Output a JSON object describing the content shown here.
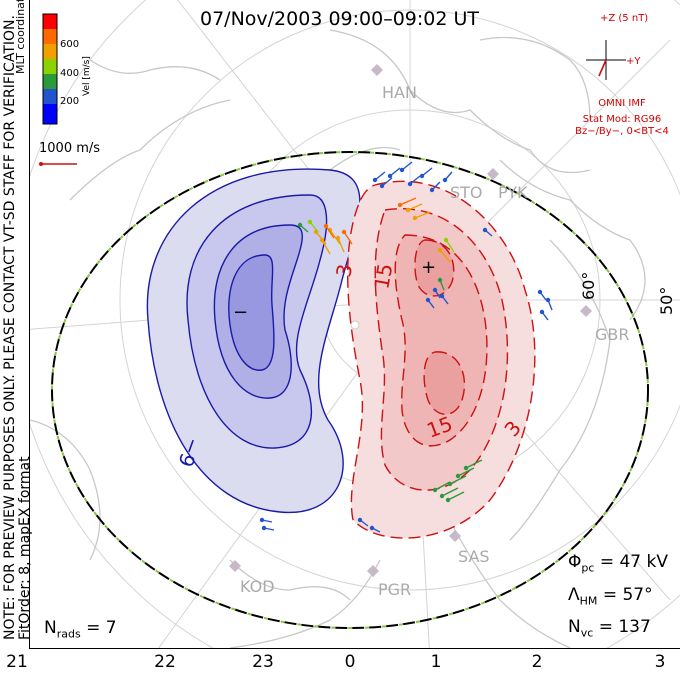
{
  "title": "07/Nov/2003 09:00–09:02 UT",
  "colorbar": {
    "label": "Vel [m/s]",
    "ticks": [
      "600",
      "400",
      "200"
    ],
    "colors": [
      "#ff0000",
      "#ff6a00",
      "#f0a000",
      "#8cd200",
      "#2a9a3a",
      "#2255cc",
      "#0000ff"
    ]
  },
  "coordinates_label": "MLT coordinates",
  "scale_label": "1000 m/s",
  "disclaimer": "NOTE: FOR PREVIEW PURPOSES ONLY. PLEASE CONTACT VT-SD STAFF FOR VERIFICATION.",
  "fit_info": "FitOrder: 8, mapEX format",
  "imf": {
    "bz_label": "+Z (5 nT)",
    "by_label": "+Y",
    "source": "OMNI IMF",
    "model": "Stat Mod: RG96",
    "condition": "Bz−/By−, 0<BT<4"
  },
  "stations": [
    "HAN",
    "STO",
    "PYK",
    "GBR",
    "KOD",
    "PGR",
    "SAS"
  ],
  "lat_labels": [
    "60°",
    "50°"
  ],
  "contours": {
    "negative_label": "−9",
    "positive_labels": [
      "3",
      "15",
      "15",
      "3"
    ],
    "min_marker": "−",
    "max_marker": "+"
  },
  "stats": {
    "phi_pc": "= 47 kV",
    "lambda_hm": "= 57°",
    "n_vc": "= 137",
    "n_rads": "= 7"
  },
  "mlt_axis": [
    "21",
    "22",
    "23",
    "0",
    "1",
    "2",
    "3"
  ],
  "colors": {
    "negative_contour": "#1a1aa8",
    "positive_contour": "#cc1111",
    "boundary_dash": "#8ac640",
    "imf_text": "#d40000"
  }
}
